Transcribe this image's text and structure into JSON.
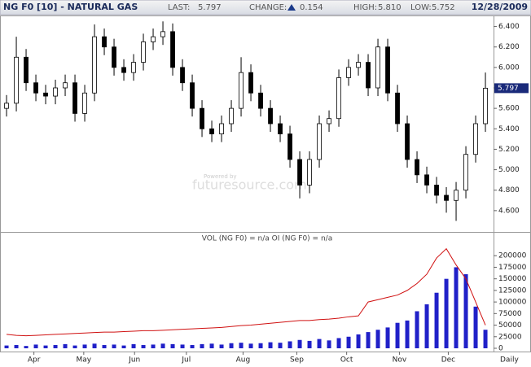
{
  "header": {
    "symbol": "NG F0 [10] - NATURAL GAS",
    "last_label": "LAST:",
    "last": "5.797",
    "change_label": "CHANGE:",
    "change": "0.154",
    "high_label": "HIGH:",
    "high": "5.810",
    "low_label": "LOW:",
    "low": "5.752",
    "date": "12/28/2009"
  },
  "watermark": {
    "top": "Powered by",
    "main": "futuresource.com"
  },
  "chart_data": [
    {
      "type": "candlestick",
      "open": [
        5.6,
        5.65,
        6.1,
        5.85,
        5.75,
        5.72,
        5.8,
        5.85,
        5.55,
        5.75,
        6.3,
        6.2,
        6.0,
        5.95,
        6.05,
        6.25,
        6.3,
        6.35,
        6.0,
        5.85,
        5.6,
        5.4,
        5.35,
        5.45,
        5.6,
        5.95,
        5.75,
        5.6,
        5.45,
        5.35,
        5.1,
        4.85,
        5.1,
        5.45,
        5.5,
        5.9,
        6.0,
        6.05,
        5.8,
        6.2,
        5.75,
        5.45,
        5.1,
        4.95,
        4.85,
        4.75,
        4.7,
        4.8,
        5.15,
        5.45
      ],
      "high": [
        5.73,
        6.3,
        6.18,
        5.93,
        5.83,
        5.88,
        5.93,
        5.93,
        5.83,
        6.42,
        6.38,
        6.28,
        6.08,
        6.13,
        6.33,
        6.38,
        6.45,
        6.43,
        6.08,
        5.93,
        5.68,
        5.48,
        5.53,
        5.68,
        6.1,
        6.03,
        5.83,
        5.68,
        5.53,
        5.43,
        5.18,
        5.18,
        5.53,
        5.58,
        5.98,
        6.08,
        6.13,
        6.13,
        6.28,
        6.28,
        5.83,
        5.53,
        5.18,
        5.03,
        4.93,
        4.83,
        4.88,
        5.23,
        5.53,
        5.95
      ],
      "low": [
        5.52,
        5.57,
        5.77,
        5.67,
        5.64,
        5.64,
        5.72,
        5.47,
        5.47,
        5.67,
        6.12,
        5.92,
        5.87,
        5.87,
        5.97,
        6.17,
        6.22,
        5.92,
        5.77,
        5.52,
        5.32,
        5.27,
        5.27,
        5.37,
        5.52,
        5.67,
        5.52,
        5.37,
        5.27,
        5.02,
        4.72,
        4.77,
        5.02,
        5.37,
        5.42,
        5.82,
        5.92,
        5.72,
        5.72,
        5.67,
        5.37,
        5.02,
        4.87,
        4.77,
        4.67,
        4.58,
        4.5,
        4.72,
        5.07,
        5.37
      ],
      "close": [
        5.65,
        6.1,
        5.85,
        5.75,
        5.72,
        5.8,
        5.85,
        5.55,
        5.75,
        6.3,
        6.2,
        6.0,
        5.95,
        6.05,
        6.25,
        6.3,
        6.35,
        6.0,
        5.85,
        5.6,
        5.4,
        5.35,
        5.45,
        5.6,
        5.95,
        5.75,
        5.6,
        5.45,
        5.35,
        5.1,
        4.85,
        5.1,
        5.45,
        5.5,
        5.9,
        6.0,
        6.05,
        5.8,
        6.2,
        5.75,
        5.45,
        5.1,
        4.95,
        4.85,
        4.75,
        4.7,
        4.8,
        5.15,
        5.45,
        5.797
      ],
      "xlim": [
        -0.67,
        49.83
      ],
      "ylim": [
        4.4,
        6.5
      ],
      "yticks": [
        {
          "value": 4.6,
          "label": "4.600"
        },
        {
          "value": 4.8,
          "label": "4.800"
        },
        {
          "value": 5.0,
          "label": "5.000"
        },
        {
          "value": 5.2,
          "label": "5.200"
        },
        {
          "value": 5.4,
          "label": "5.400"
        },
        {
          "value": 5.6,
          "label": "5.600"
        },
        {
          "value": 5.8,
          "label": "5.800"
        },
        {
          "value": 6.0,
          "label": "6.000"
        },
        {
          "value": 6.2,
          "label": "6.200"
        },
        {
          "value": 6.4,
          "label": "6.400"
        }
      ],
      "up_color": "#ffffff",
      "down_color": "#000000",
      "grid": false
    },
    {
      "type": "bar",
      "title": "VOL (NG F0) = n/a OI (NG F0) = n/a",
      "series": [
        {
          "color": "#2020c8",
          "values": [
            6000,
            7000,
            5000,
            8000,
            6000,
            7000,
            9000,
            6000,
            8000,
            10000,
            7000,
            8000,
            6000,
            9000,
            7000,
            8000,
            10000,
            9000,
            8000,
            7000,
            9000,
            10000,
            8000,
            11000,
            12000,
            10000,
            11000,
            13000,
            12000,
            15000,
            18000,
            16000,
            20000,
            17000,
            22000,
            25000,
            30000,
            35000,
            40000,
            45000,
            55000,
            60000,
            80000,
            95000,
            120000,
            150000,
            175000,
            160000,
            90000,
            40000
          ]
        },
        {
          "color": "#d01010",
          "values": [
            30000,
            28000,
            27000,
            28000,
            29000,
            30000,
            31000,
            32000,
            33000,
            34000,
            35000,
            35000,
            36000,
            37000,
            38000,
            38000,
            39000,
            40000,
            41000,
            42000,
            43000,
            44000,
            45000,
            47000,
            49000,
            50000,
            52000,
            54000,
            56000,
            58000,
            60000,
            60000,
            62000,
            63000,
            65000,
            68000,
            70000,
            100000,
            105000,
            110000,
            115000,
            125000,
            140000,
            160000,
            195000,
            215000,
            180000,
            150000,
            100000,
            50000
          ]
        }
      ],
      "xlim": [
        -0.67,
        49.83
      ],
      "ylim": [
        0,
        225000
      ],
      "yticks": [
        0,
        25000,
        50000,
        75000,
        100000,
        125000,
        150000,
        175000,
        200000
      ],
      "xticks": [
        {
          "value": 2.8,
          "label": "Apr"
        },
        {
          "value": 7.9,
          "label": "May"
        },
        {
          "value": 13.1,
          "label": "Jun"
        },
        {
          "value": 18.4,
          "label": "Jul"
        },
        {
          "value": 24.2,
          "label": "Aug"
        },
        {
          "value": 29.7,
          "label": "Sep"
        },
        {
          "value": 34.8,
          "label": "Oct"
        },
        {
          "value": 40.2,
          "label": "Nov"
        },
        {
          "value": 45.2,
          "label": "Dec"
        }
      ],
      "x_label": "Daily"
    }
  ]
}
